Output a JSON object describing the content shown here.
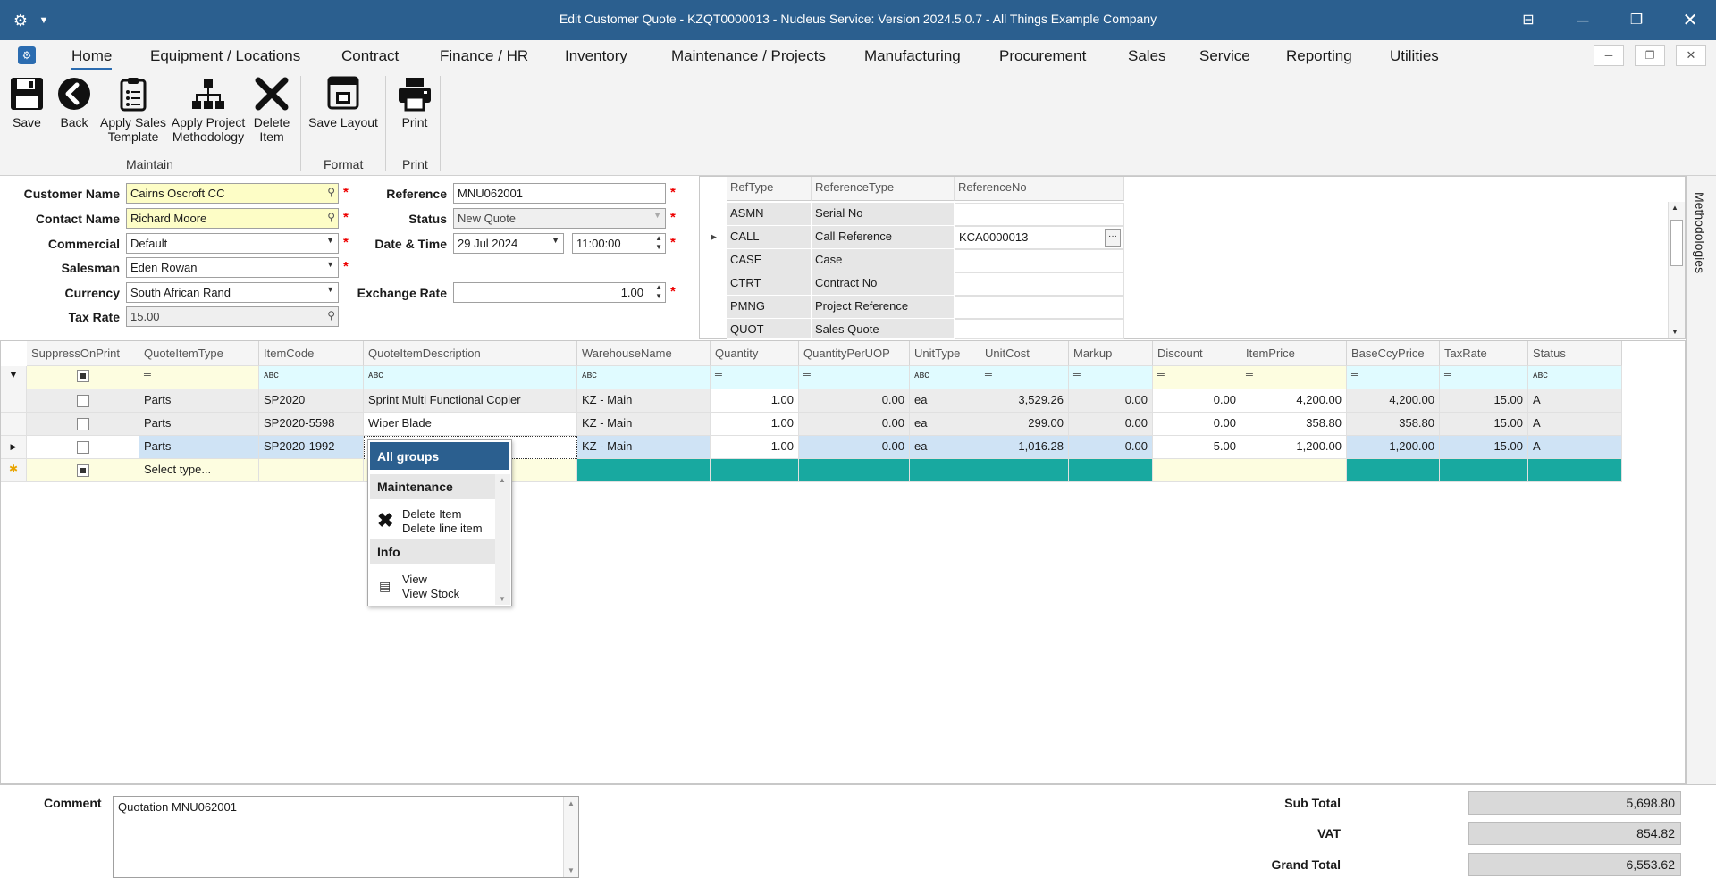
{
  "window": {
    "title": "Edit Customer Quote - KZQT0000013 - Nucleus Service: Version 2024.5.0.7 - All Things Example Company"
  },
  "menu": [
    "Home",
    "Equipment / Locations",
    "Contract",
    "Finance / HR",
    "Inventory",
    "Maintenance / Projects",
    "Manufacturing",
    "Procurement",
    "Sales",
    "Service",
    "Reporting",
    "Utilities"
  ],
  "ribbon": {
    "save": "Save",
    "back": "Back",
    "apply_sales_1": "Apply Sales",
    "apply_sales_2": "Template",
    "apply_proj_1": "Apply Project",
    "apply_proj_2": "Methodology",
    "delete_1": "Delete",
    "delete_2": "Item",
    "save_layout": "Save Layout",
    "print": "Print",
    "group_maintain": "Maintain",
    "group_format": "Format",
    "group_print": "Print"
  },
  "form": {
    "customer_name_label": "Customer Name",
    "customer_name": "Cairns Oscroft CC",
    "contact_name_label": "Contact Name",
    "contact_name": "Richard Moore",
    "commercial_label": "Commercial",
    "commercial": "Default",
    "salesman_label": "Salesman",
    "salesman": "Eden Rowan",
    "currency_label": "Currency",
    "currency": "South African Rand",
    "tax_rate_label": "Tax Rate",
    "tax_rate": "15.00",
    "reference_label": "Reference",
    "reference": "MNU062001",
    "status_label": "Status",
    "status": "New Quote",
    "datetime_label": "Date & Time",
    "date": "29 Jul 2024",
    "time": "11:00:00",
    "exchange_rate_label": "Exchange Rate",
    "exchange_rate": "1.00"
  },
  "ref_table": {
    "headers": [
      "RefType",
      "ReferenceType",
      "ReferenceNo"
    ],
    "rows": [
      {
        "reftype": "ASMN",
        "referencetype": "Serial No",
        "referenceno": ""
      },
      {
        "reftype": "CALL",
        "referencetype": "Call Reference",
        "referenceno": "KCA0000013"
      },
      {
        "reftype": "CASE",
        "referencetype": "Case",
        "referenceno": ""
      },
      {
        "reftype": "CTRT",
        "referencetype": "Contract No",
        "referenceno": ""
      },
      {
        "reftype": "PMNG",
        "referencetype": "Project Reference",
        "referenceno": ""
      },
      {
        "reftype": "QUOT",
        "referencetype": "Sales Quote",
        "referenceno": ""
      }
    ]
  },
  "grid": {
    "headers": [
      "SuppressOnPrint",
      "QuoteItemType",
      "ItemCode",
      "QuoteItemDescription",
      "WarehouseName",
      "Quantity",
      "QuantityPerUOP",
      "UnitType",
      "UnitCost",
      "Markup",
      "Discount",
      "ItemPrice",
      "BaseCcyPrice",
      "TaxRate",
      "Status"
    ],
    "rows": [
      [
        "",
        "Parts",
        "SP2020",
        "Sprint Multi Functional Copier",
        "KZ - Main",
        "1.00",
        "0.00",
        "ea",
        "3,529.26",
        "0.00",
        "0.00",
        "4,200.00",
        "4,200.00",
        "15.00",
        "A"
      ],
      [
        "",
        "Parts",
        "SP2020-5598",
        "Wiper Blade",
        "KZ - Main",
        "1.00",
        "0.00",
        "ea",
        "299.00",
        "0.00",
        "0.00",
        "358.80",
        "358.80",
        "15.00",
        "A"
      ],
      [
        "",
        "Parts",
        "SP2020-1992",
        "",
        "KZ - Main",
        "1.00",
        "0.00",
        "ea",
        "1,016.28",
        "0.00",
        "5.00",
        "1,200.00",
        "1,200.00",
        "15.00",
        "A"
      ]
    ],
    "new_row_placeholder": "Select type..."
  },
  "popup": {
    "title": "All groups",
    "group1": "Maintenance",
    "item1_title": "Delete Item",
    "item1_sub": "Delete line item",
    "group2": "Info",
    "item2_title": "View",
    "item2_sub": "View Stock"
  },
  "footer": {
    "comment_label": "Comment",
    "comment": "Quotation MNU062001",
    "subtotal_label": "Sub Total",
    "subtotal": "5,698.80",
    "vat_label": "VAT",
    "vat": "854.82",
    "grand_total_label": "Grand Total",
    "grand_total": "6,553.62"
  },
  "side_tab": "Methodologies"
}
